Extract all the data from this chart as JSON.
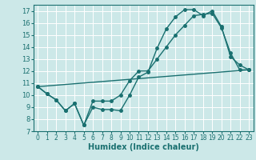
{
  "xlabel": "Humidex (Indice chaleur)",
  "bg_color": "#cce8e8",
  "grid_color": "#ffffff",
  "line_color": "#1a7070",
  "xlim": [
    -0.5,
    23.5
  ],
  "ylim": [
    7,
    17.5
  ],
  "yticks": [
    7,
    8,
    9,
    10,
    11,
    12,
    13,
    14,
    15,
    16,
    17
  ],
  "xticks": [
    0,
    1,
    2,
    3,
    4,
    5,
    6,
    7,
    8,
    9,
    10,
    11,
    12,
    13,
    14,
    15,
    16,
    17,
    18,
    19,
    20,
    21,
    22,
    23
  ],
  "line1_x": [
    0,
    1,
    2,
    3,
    4,
    5,
    6,
    7,
    8,
    9,
    10,
    11,
    12,
    13,
    14,
    15,
    16,
    17,
    18,
    19,
    20,
    21,
    22,
    23
  ],
  "line1_y": [
    10.7,
    10.1,
    9.6,
    8.7,
    9.3,
    7.5,
    9.0,
    8.8,
    8.8,
    8.7,
    10.0,
    11.5,
    11.9,
    13.9,
    15.5,
    16.5,
    17.1,
    17.1,
    16.6,
    17.0,
    15.7,
    13.2,
    12.5,
    12.1
  ],
  "line2_x": [
    0,
    1,
    2,
    3,
    4,
    5,
    6,
    7,
    8,
    9,
    10,
    11,
    12,
    13,
    14,
    15,
    16,
    17,
    18,
    19,
    20,
    21,
    22,
    23
  ],
  "line2_y": [
    10.7,
    10.1,
    9.6,
    8.7,
    9.3,
    7.5,
    9.5,
    9.5,
    9.5,
    10.0,
    11.2,
    12.0,
    12.0,
    13.0,
    14.0,
    15.0,
    15.8,
    16.6,
    16.7,
    16.8,
    15.6,
    13.5,
    12.1,
    12.1
  ],
  "line3_x": [
    0,
    23
  ],
  "line3_y": [
    10.7,
    12.1
  ],
  "marker_size": 2.5,
  "line_width": 1.0
}
